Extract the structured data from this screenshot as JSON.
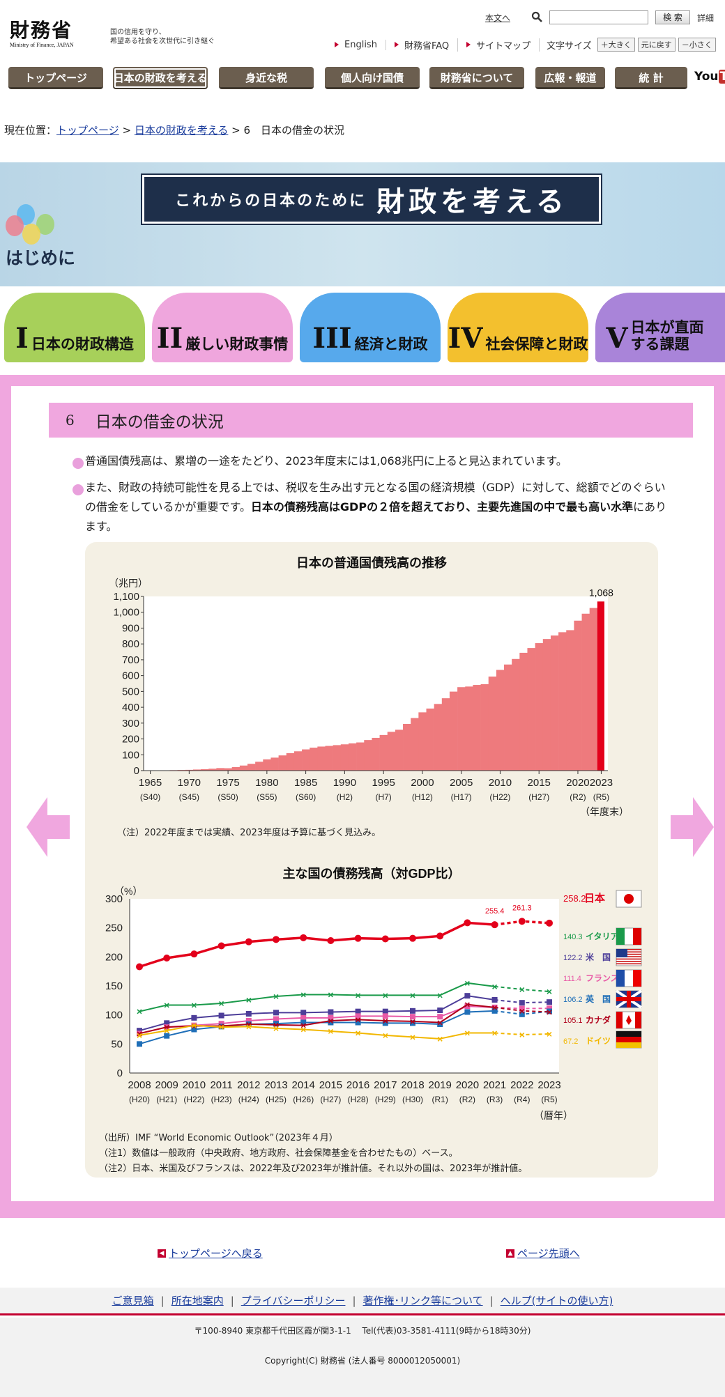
{
  "header": {
    "logo_jp": "財務省",
    "logo_en": "Ministry of Finance, JAPAN",
    "tagline_1": "国の信用を守り、",
    "tagline_2": "希望ある社会を次世代に引き継ぐ",
    "skip_link": "本文へ",
    "search_button": "検 索",
    "detail_link": "詳細",
    "link_english": "English",
    "link_faq": "財務省FAQ",
    "link_sitemap": "サイトマップ",
    "font_size_label": "文字サイズ",
    "font_larger": "大きく",
    "font_reset": "元に戻す",
    "font_smaller": "小さく"
  },
  "nav": {
    "items": [
      "トップページ",
      "日本の財政を考える",
      "身近な税",
      "個人向け国債",
      "財務省について",
      "広報・報道",
      "統 計"
    ],
    "youtube": "You"
  },
  "breadcrumb": {
    "prefix": "現在位置：",
    "home": "トップページ",
    "section": "日本の財政を考える",
    "current": "6　日本の借金の状況"
  },
  "hero": {
    "title_small": "これからの日本のために",
    "title_big": "財政を考える",
    "hajimeni": "はじめに"
  },
  "chapters": [
    {
      "num": "I",
      "label": "日本の財政構造",
      "color": "#a7d05a"
    },
    {
      "num": "II",
      "label": "厳しい財政事情",
      "color": "#efa6dd"
    },
    {
      "num": "III",
      "label": "経済と財政",
      "color": "#57a9ec"
    },
    {
      "num": "IV",
      "label": "社会保障と財政",
      "color": "#f3c02e"
    },
    {
      "num": "V",
      "label": "日本が直面する課題",
      "color": "#a984d9"
    }
  ],
  "section": {
    "number": "6",
    "title": "日本の借金の状況"
  },
  "bullets": {
    "b1": "普通国債残高は、累増の一途をたどり、2023年度末には1,068兆円に上ると見込まれています。",
    "b2_plain": "また、財政の持続可能性を見る上では、税収を生み出す元となる国の経済規模（GDP）に対して、総額でどのぐらいの借金をしているかが重要です。",
    "b2_em": "日本の債務残高はGDPの２倍を超えており、主要先進国の中で最も高い水準",
    "b2_tail": "にあります。"
  },
  "chart_data": [
    {
      "type": "bar",
      "title": "日本の普通国債残高の推移",
      "ylabel": "（兆円）",
      "xlabel": "（年度末）",
      "ylim": [
        0,
        1100
      ],
      "yticks": [
        "0",
        "100",
        "200",
        "300",
        "400",
        "500",
        "600",
        "700",
        "800",
        "900",
        "1,000",
        "1,100"
      ],
      "xtick_labels": [
        [
          "1965",
          "(S40)"
        ],
        [
          "1970",
          "(S45)"
        ],
        [
          "1975",
          "(S50)"
        ],
        [
          "1980",
          "(S55)"
        ],
        [
          "1985",
          "(S60)"
        ],
        [
          "1990",
          "(H2)"
        ],
        [
          "1995",
          "(H7)"
        ],
        [
          "2000",
          "(H12)"
        ],
        [
          "2005",
          "(H17)"
        ],
        [
          "2010",
          "(H22)"
        ],
        [
          "2015",
          "(H27)"
        ],
        [
          "2020",
          "(R2)"
        ],
        [
          "2023",
          "(R5)"
        ]
      ],
      "x": [
        1965,
        1966,
        1967,
        1968,
        1969,
        1970,
        1971,
        1972,
        1973,
        1974,
        1975,
        1976,
        1977,
        1978,
        1979,
        1980,
        1981,
        1982,
        1983,
        1984,
        1985,
        1986,
        1987,
        1988,
        1989,
        1990,
        1991,
        1992,
        1993,
        1994,
        1995,
        1996,
        1997,
        1998,
        1999,
        2000,
        2001,
        2002,
        2003,
        2004,
        2005,
        2006,
        2007,
        2008,
        2009,
        2010,
        2011,
        2012,
        2013,
        2014,
        2015,
        2016,
        2017,
        2018,
        2019,
        2020,
        2021,
        2022,
        2023
      ],
      "values": [
        0,
        1,
        2,
        3,
        4,
        5,
        7,
        9,
        12,
        16,
        15,
        22,
        32,
        43,
        56,
        71,
        82,
        96,
        110,
        122,
        134,
        145,
        152,
        156,
        161,
        166,
        172,
        178,
        193,
        207,
        225,
        245,
        258,
        295,
        332,
        368,
        392,
        421,
        457,
        499,
        527,
        531,
        541,
        546,
        594,
        636,
        670,
        705,
        744,
        774,
        805,
        831,
        853,
        874,
        887,
        947,
        991,
        1027,
        1068
      ],
      "data_label": "1,068",
      "highlight_last": true,
      "note": "（注）2022年度までは実績、2023年度は予算に基づく見込み。"
    },
    {
      "type": "line",
      "title": "主な国の債務残高（対GDP比）",
      "ylabel": "（%）",
      "xlabel": "（暦年）",
      "ylim": [
        0,
        300
      ],
      "yticks": [
        "0",
        "50",
        "100",
        "150",
        "200",
        "250",
        "300"
      ],
      "xtick_labels": [
        [
          "2008",
          "(H20)"
        ],
        [
          "2009",
          "(H21)"
        ],
        [
          "2010",
          "(H22)"
        ],
        [
          "2011",
          "(H23)"
        ],
        [
          "2012",
          "(H24)"
        ],
        [
          "2013",
          "(H25)"
        ],
        [
          "2014",
          "(H26)"
        ],
        [
          "2015",
          "(H27)"
        ],
        [
          "2016",
          "(H28)"
        ],
        [
          "2017",
          "(H29)"
        ],
        [
          "2018",
          "(H30)"
        ],
        [
          "2019",
          "(R1)"
        ],
        [
          "2020",
          "(R2)"
        ],
        [
          "2021",
          "(R3)"
        ],
        [
          "2022",
          "(R4)"
        ],
        [
          "2023",
          "(R5)"
        ]
      ],
      "x": [
        2008,
        2009,
        2010,
        2011,
        2012,
        2013,
        2014,
        2015,
        2016,
        2017,
        2018,
        2019,
        2020,
        2021,
        2022,
        2023
      ],
      "series": [
        {
          "name": "日本",
          "color": "#e3001b",
          "end_label": "258.2",
          "values": [
            183,
            198,
            205,
            219,
            226,
            230,
            233,
            228,
            232,
            231,
            232,
            236,
            258.7,
            255.4,
            261.3,
            258.2
          ]
        },
        {
          "name": "イタリア",
          "color": "#1a9a4a",
          "end_label": "140.3",
          "values": [
            106,
            117,
            117,
            120,
            126,
            132,
            135,
            135,
            134,
            134,
            134,
            134,
            155,
            149,
            144,
            140.3
          ]
        },
        {
          "name": "米　国",
          "color": "#4d3e99",
          "end_label": "122.2",
          "values": [
            73,
            86,
            95,
            99,
            102,
            104,
            104,
            105,
            106,
            106,
            107,
            108,
            133,
            126,
            121,
            122.2
          ]
        },
        {
          "name": "フランス",
          "color": "#e85aa6",
          "end_label": "111.4",
          "values": [
            68,
            79,
            82,
            85,
            90,
            93,
            95,
            95,
            98,
            98,
            97,
            97,
            115,
            113,
            111,
            111.4
          ]
        },
        {
          "name": "英　国",
          "color": "#1f6fb8",
          "end_label": "106.2",
          "values": [
            50,
            64,
            75,
            80,
            84,
            85,
            87,
            87,
            87,
            86,
            86,
            84,
            105,
            107,
            101,
            106.2
          ]
        },
        {
          "name": "カナダ",
          "color": "#b0001a",
          "end_label": "105.1",
          "values": [
            68,
            79,
            81,
            81,
            84,
            83,
            82,
            90,
            92,
            90,
            89,
            87,
            118,
            113,
            107,
            105.1
          ]
        },
        {
          "name": "ドイツ",
          "color": "#f2b700",
          "end_label": "67.2",
          "values": [
            65,
            73,
            82,
            79,
            80,
            77,
            75,
            72,
            69,
            65,
            62,
            59,
            69,
            69,
            66,
            67.2
          ]
        }
      ],
      "japan_labels": [
        "255.4",
        "261.3"
      ],
      "projection_start_index": 13,
      "source": "（出所）IMF “World Economic Outlook”（2023年４月）",
      "note1": "（注1）数値は一般政府（中央政府、地方政府、社会保障基金を合わせたもの）ベース。",
      "note2": "（注2）日本、米国及びフランスは、2022年及び2023年が推計値。それ以外の国は、2023年が推計値。"
    }
  ],
  "page_links": {
    "back_top": "トップページへ戻る",
    "page_top": "ページ先頭へ"
  },
  "footer": {
    "links": [
      "ご意見箱",
      "所在地案内",
      "プライバシーポリシー",
      "著作権･リンク等について",
      "ヘルプ(サイトの使い方)"
    ],
    "address": "〒100-8940 東京都千代田区霞が関3-1-1　 Tel(代表)03-3581-4111(9時から18時30分)",
    "copyright": "Copyright(C) 財務省 (法人番号 8000012050001)"
  }
}
